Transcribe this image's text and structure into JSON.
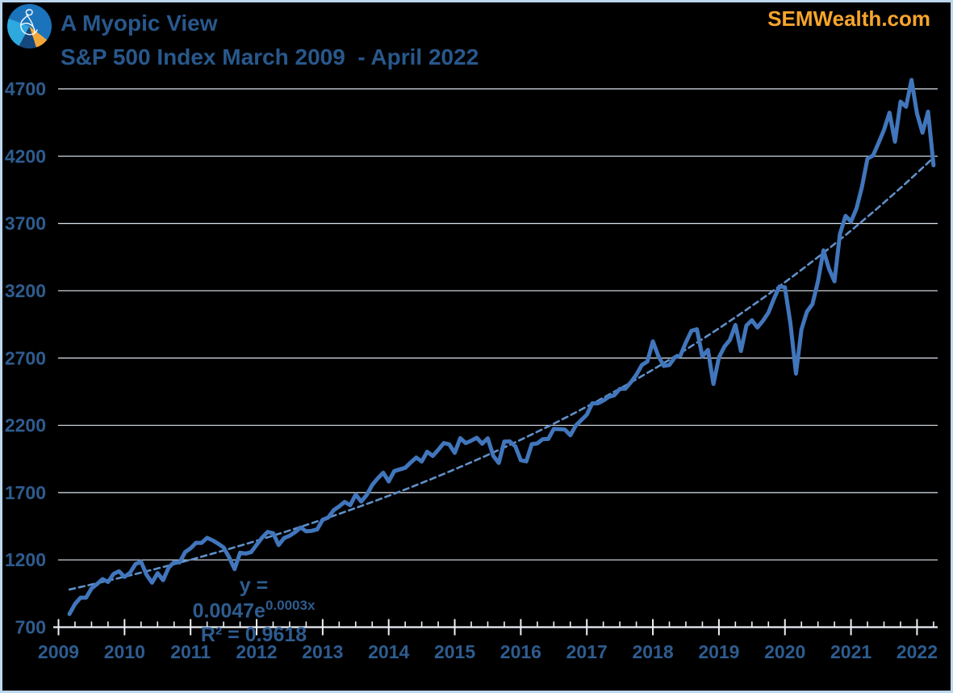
{
  "header": {
    "title": "A Myopic View",
    "subtitle": "S&P 500 Index March 2009  - April 2022",
    "site": "SEMWealth.com"
  },
  "annotation": {
    "equation_prefix": "y = 0.0047e",
    "equation_exponent": "0.0003x",
    "r_squared_label": "R² = 0.9618"
  },
  "colors": {
    "background": "#000000",
    "border": "#BDD7EE",
    "title_blue": "#28588C",
    "label_blue": "#2E5C8F",
    "site_orange": "#F7A52B",
    "gridline": "#DEE5EF",
    "axis": "#EDF1F8",
    "series_line": "#4176BC",
    "trendline": "#6090C8"
  },
  "chart_data": {
    "type": "line",
    "title": "S&P 500 Index March 2009 - April 2022",
    "xlabel": "",
    "ylabel": "",
    "ylim": [
      700,
      4700
    ],
    "grid": true,
    "legend": "none",
    "y_ticks": [
      700,
      1200,
      1700,
      2200,
      2700,
      3200,
      3700,
      4200,
      4700
    ],
    "x_tick_labels": [
      "2009",
      "2010",
      "2011",
      "2012",
      "2013",
      "2014",
      "2015",
      "2016",
      "2017",
      "2018",
      "2019",
      "2020",
      "2021",
      "2022"
    ],
    "x_minor_ticks_per_year": 3,
    "start_month": "2009-03",
    "frequency": "monthly",
    "series": [
      {
        "name": "S&P 500 Index (monthly close)",
        "values": [
          797.87,
          872.81,
          919.14,
          919.32,
          987.48,
          1020.62,
          1057.08,
          1036.19,
          1095.63,
          1115.1,
          1073.87,
          1104.49,
          1169.43,
          1186.69,
          1089.41,
          1030.71,
          1101.6,
          1049.33,
          1141.2,
          1183.26,
          1180.55,
          1257.64,
          1286.12,
          1327.22,
          1325.83,
          1363.61,
          1345.2,
          1320.64,
          1292.28,
          1218.89,
          1131.42,
          1253.3,
          1246.96,
          1257.6,
          1312.41,
          1365.68,
          1408.47,
          1397.91,
          1310.33,
          1362.16,
          1379.32,
          1406.58,
          1440.67,
          1412.16,
          1416.18,
          1426.19,
          1498.11,
          1514.68,
          1569.19,
          1597.57,
          1630.74,
          1606.28,
          1685.73,
          1632.97,
          1681.55,
          1756.54,
          1805.81,
          1848.36,
          1782.59,
          1859.45,
          1872.34,
          1883.95,
          1923.57,
          1960.23,
          1930.67,
          2003.37,
          1972.29,
          2018.05,
          2067.56,
          2058.9,
          1994.99,
          2104.5,
          2067.89,
          2085.51,
          2107.39,
          2063.11,
          2103.84,
          1972.18,
          1920.03,
          2079.36,
          2080.41,
          2043.94,
          1940.24,
          1932.23,
          2059.74,
          2065.3,
          2096.96,
          2098.86,
          2173.6,
          2170.95,
          2168.27,
          2126.15,
          2198.81,
          2238.83,
          2278.87,
          2363.64,
          2362.72,
          2384.2,
          2411.8,
          2423.41,
          2470.3,
          2471.65,
          2519.36,
          2575.26,
          2647.58,
          2673.61,
          2823.81,
          2713.83,
          2640.87,
          2648.05,
          2705.27,
          2718.37,
          2816.29,
          2901.52,
          2913.98,
          2711.74,
          2760.17,
          2506.85,
          2704.1,
          2784.49,
          2834.4,
          2945.83,
          2752.06,
          2941.76,
          2980.38,
          2926.46,
          2976.74,
          3037.56,
          3140.98,
          3230.78,
          3225.52,
          2954.22,
          2584.59,
          2912.43,
          3044.31,
          3100.29,
          3271.12,
          3500.31,
          3363.0,
          3269.96,
          3621.63,
          3756.07,
          3714.24,
          3811.15,
          3972.89,
          4181.17,
          4204.11,
          4297.5,
          4395.26,
          4522.68,
          4307.54,
          4605.38,
          4567.0,
          4766.18,
          4515.55,
          4373.94,
          4530.41,
          4131.93
        ]
      },
      {
        "name": "Exponential trendline",
        "style": "dashed",
        "equation": "y = 0.0047e^0.0003x",
        "r_squared": 0.9618,
        "draw_fit": {
          "a": 962,
          "r": 0.009254
        }
      }
    ]
  }
}
